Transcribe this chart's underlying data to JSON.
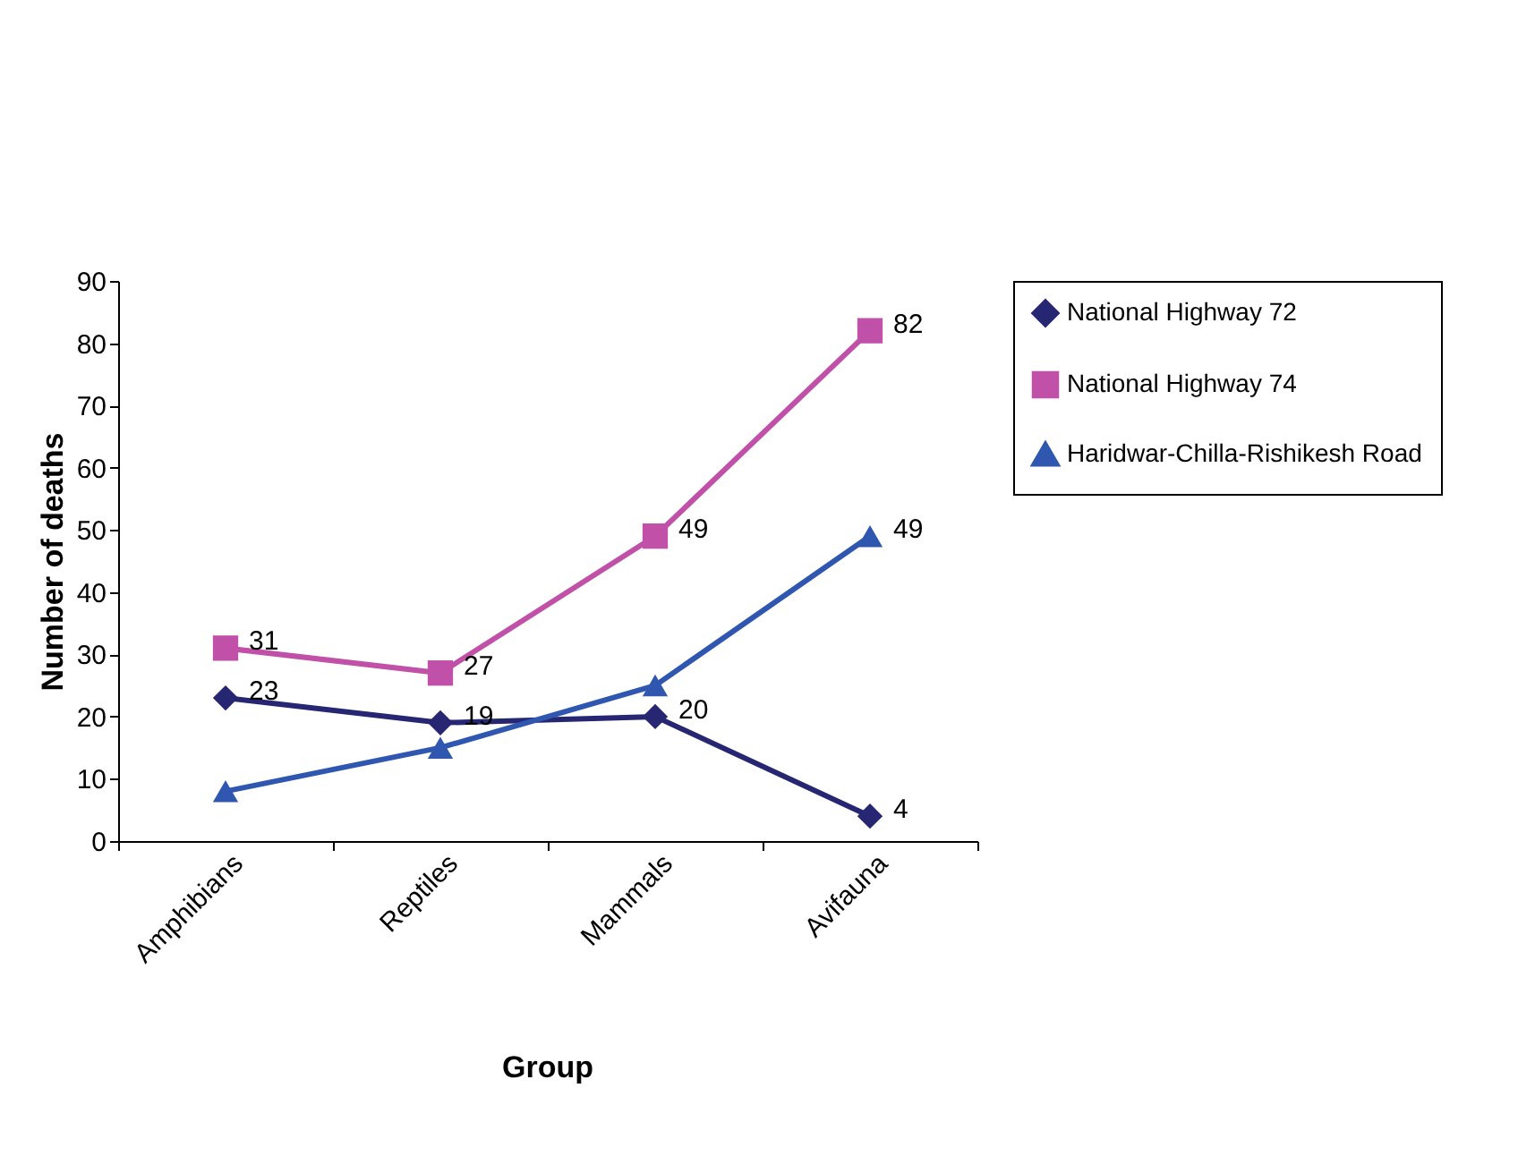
{
  "chart_data": {
    "type": "line",
    "xlabel": "Group",
    "ylabel": "Number of deaths",
    "categories": [
      "Amphibians",
      "Reptiles",
      "Mammals",
      "Avifauna"
    ],
    "series": [
      {
        "name": "National Highway 72",
        "color": "#262673",
        "marker": "diamond",
        "values": [
          23,
          19,
          20,
          4
        ],
        "value_labels": [
          "23",
          "19",
          "20",
          "4"
        ]
      },
      {
        "name": "National Highway 74",
        "color": "#c050a8",
        "marker": "square",
        "values": [
          31,
          27,
          49,
          82
        ],
        "value_labels": [
          "31",
          "27",
          "49",
          "82"
        ]
      },
      {
        "name": "Haridwar-Chilla-Rishikesh Road",
        "color": "#3057b0",
        "marker": "triangle",
        "values": [
          8,
          15,
          25,
          49
        ],
        "value_labels": [
          null,
          null,
          null,
          "49"
        ]
      }
    ],
    "ylim": [
      0,
      90
    ],
    "yticks": [
      0,
      10,
      20,
      30,
      40,
      50,
      60,
      70,
      80,
      90
    ],
    "grid": false,
    "legend": "right"
  }
}
